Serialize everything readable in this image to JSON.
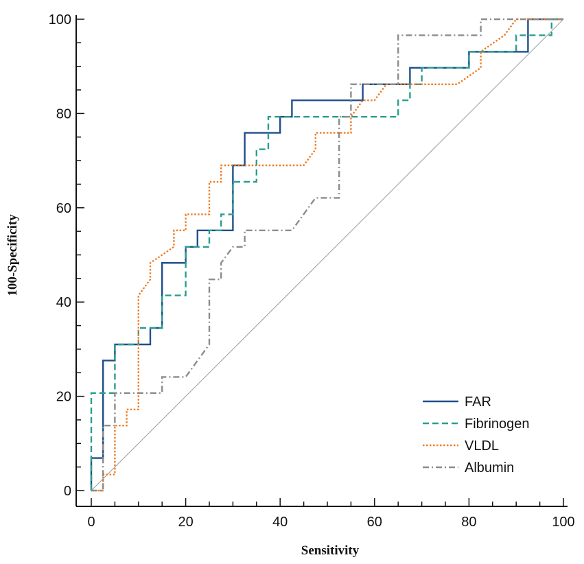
{
  "chart_data": {
    "type": "line",
    "title": "",
    "xlabel": "Sensitivity",
    "ylabel": "100-Specificity",
    "xlim": [
      0,
      100
    ],
    "ylim": [
      0,
      100
    ],
    "xticks": [
      0,
      20,
      40,
      60,
      80,
      100
    ],
    "yticks": [
      0,
      20,
      40,
      60,
      80,
      100
    ],
    "minor_step": 5,
    "grid": false,
    "legend_position": "bottom-right",
    "reference_line": {
      "x": [
        0,
        100
      ],
      "y": [
        0,
        100
      ],
      "color": "#9a9a9a"
    },
    "series": [
      {
        "name": "FAR",
        "color": "#1f4e8c",
        "style": "solid",
        "x": [
          0,
          0,
          2.5,
          2.5,
          5,
          5,
          12.5,
          12.5,
          15,
          15,
          20,
          20,
          22.5,
          22.5,
          30,
          30,
          32.5,
          32.5,
          40,
          40,
          42.5,
          42.5,
          57.5,
          57.5,
          67.5,
          67.5,
          80,
          80,
          92.5,
          92.5,
          100
        ],
        "y": [
          0,
          6.9,
          6.9,
          27.6,
          27.6,
          31,
          31,
          34.5,
          34.5,
          48.3,
          48.3,
          51.7,
          51.7,
          55.2,
          55.2,
          69,
          69,
          75.9,
          75.9,
          79.3,
          79.3,
          82.8,
          82.8,
          86.2,
          86.2,
          89.7,
          89.7,
          93.1,
          93.1,
          100,
          100
        ]
      },
      {
        "name": "Fibrinogen",
        "color": "#2a9d8f",
        "style": "dashed",
        "x": [
          0,
          0,
          5,
          5,
          10,
          10,
          15,
          15,
          20,
          20,
          25,
          25,
          27.5,
          27.5,
          30,
          30,
          35,
          35,
          37.5,
          37.5,
          55,
          55,
          65,
          65,
          67.5,
          67.5,
          70,
          70,
          80,
          80,
          90,
          90,
          97.5,
          97.5,
          100
        ],
        "y": [
          0,
          20.7,
          20.7,
          31,
          31,
          34.5,
          34.5,
          41.4,
          41.4,
          51.7,
          51.7,
          55.2,
          55.2,
          58.6,
          58.6,
          65.5,
          65.5,
          72.4,
          72.4,
          79.3,
          79.3,
          79.3,
          79.3,
          82.8,
          82.8,
          86.2,
          86.2,
          89.7,
          89.7,
          93.1,
          93.1,
          96.6,
          96.6,
          100,
          100
        ]
      },
      {
        "name": "VLDL",
        "color": "#f07b20",
        "style": "dotted",
        "x": [
          0,
          2.5,
          2.5,
          5,
          5,
          7.5,
          7.5,
          10,
          10,
          10,
          12.5,
          12.5,
          17.5,
          17.5,
          20,
          20,
          25,
          25,
          27.5,
          27.5,
          45,
          47.5,
          47.5,
          52.5,
          52.5,
          55,
          55,
          57.5,
          60,
          62.5,
          62.5,
          77.5,
          82.5,
          82.5,
          87.5,
          90,
          92.5,
          100
        ],
        "y": [
          0,
          0,
          3.4,
          3.4,
          13.8,
          13.8,
          17.2,
          17.2,
          31,
          41.4,
          44.8,
          48.3,
          51.7,
          55.2,
          55.2,
          58.6,
          58.6,
          65.5,
          65.5,
          69,
          69,
          72.4,
          75.9,
          75.9,
          75.9,
          75.9,
          79.3,
          82.8,
          82.8,
          86.2,
          86.2,
          86.2,
          89.7,
          93.1,
          96.6,
          100,
          100,
          100
        ]
      },
      {
        "name": "Albumin",
        "color": "#8c8c8c",
        "style": "dashdot",
        "x": [
          0,
          2.5,
          2.5,
          5,
          5,
          15,
          15,
          20,
          25,
          25,
          27.5,
          27.5,
          30,
          32.5,
          32.5,
          42.5,
          47.5,
          52.5,
          52.5,
          55,
          55,
          65,
          65,
          82.5,
          82.5,
          90,
          100
        ],
        "y": [
          0,
          0,
          13.8,
          13.8,
          20.7,
          20.7,
          24.1,
          24.1,
          31,
          44.8,
          44.8,
          48.3,
          51.7,
          51.7,
          55.2,
          55.2,
          62.1,
          62.1,
          79.3,
          79.3,
          86.2,
          86.2,
          96.6,
          96.6,
          100,
          100,
          100
        ]
      }
    ]
  }
}
